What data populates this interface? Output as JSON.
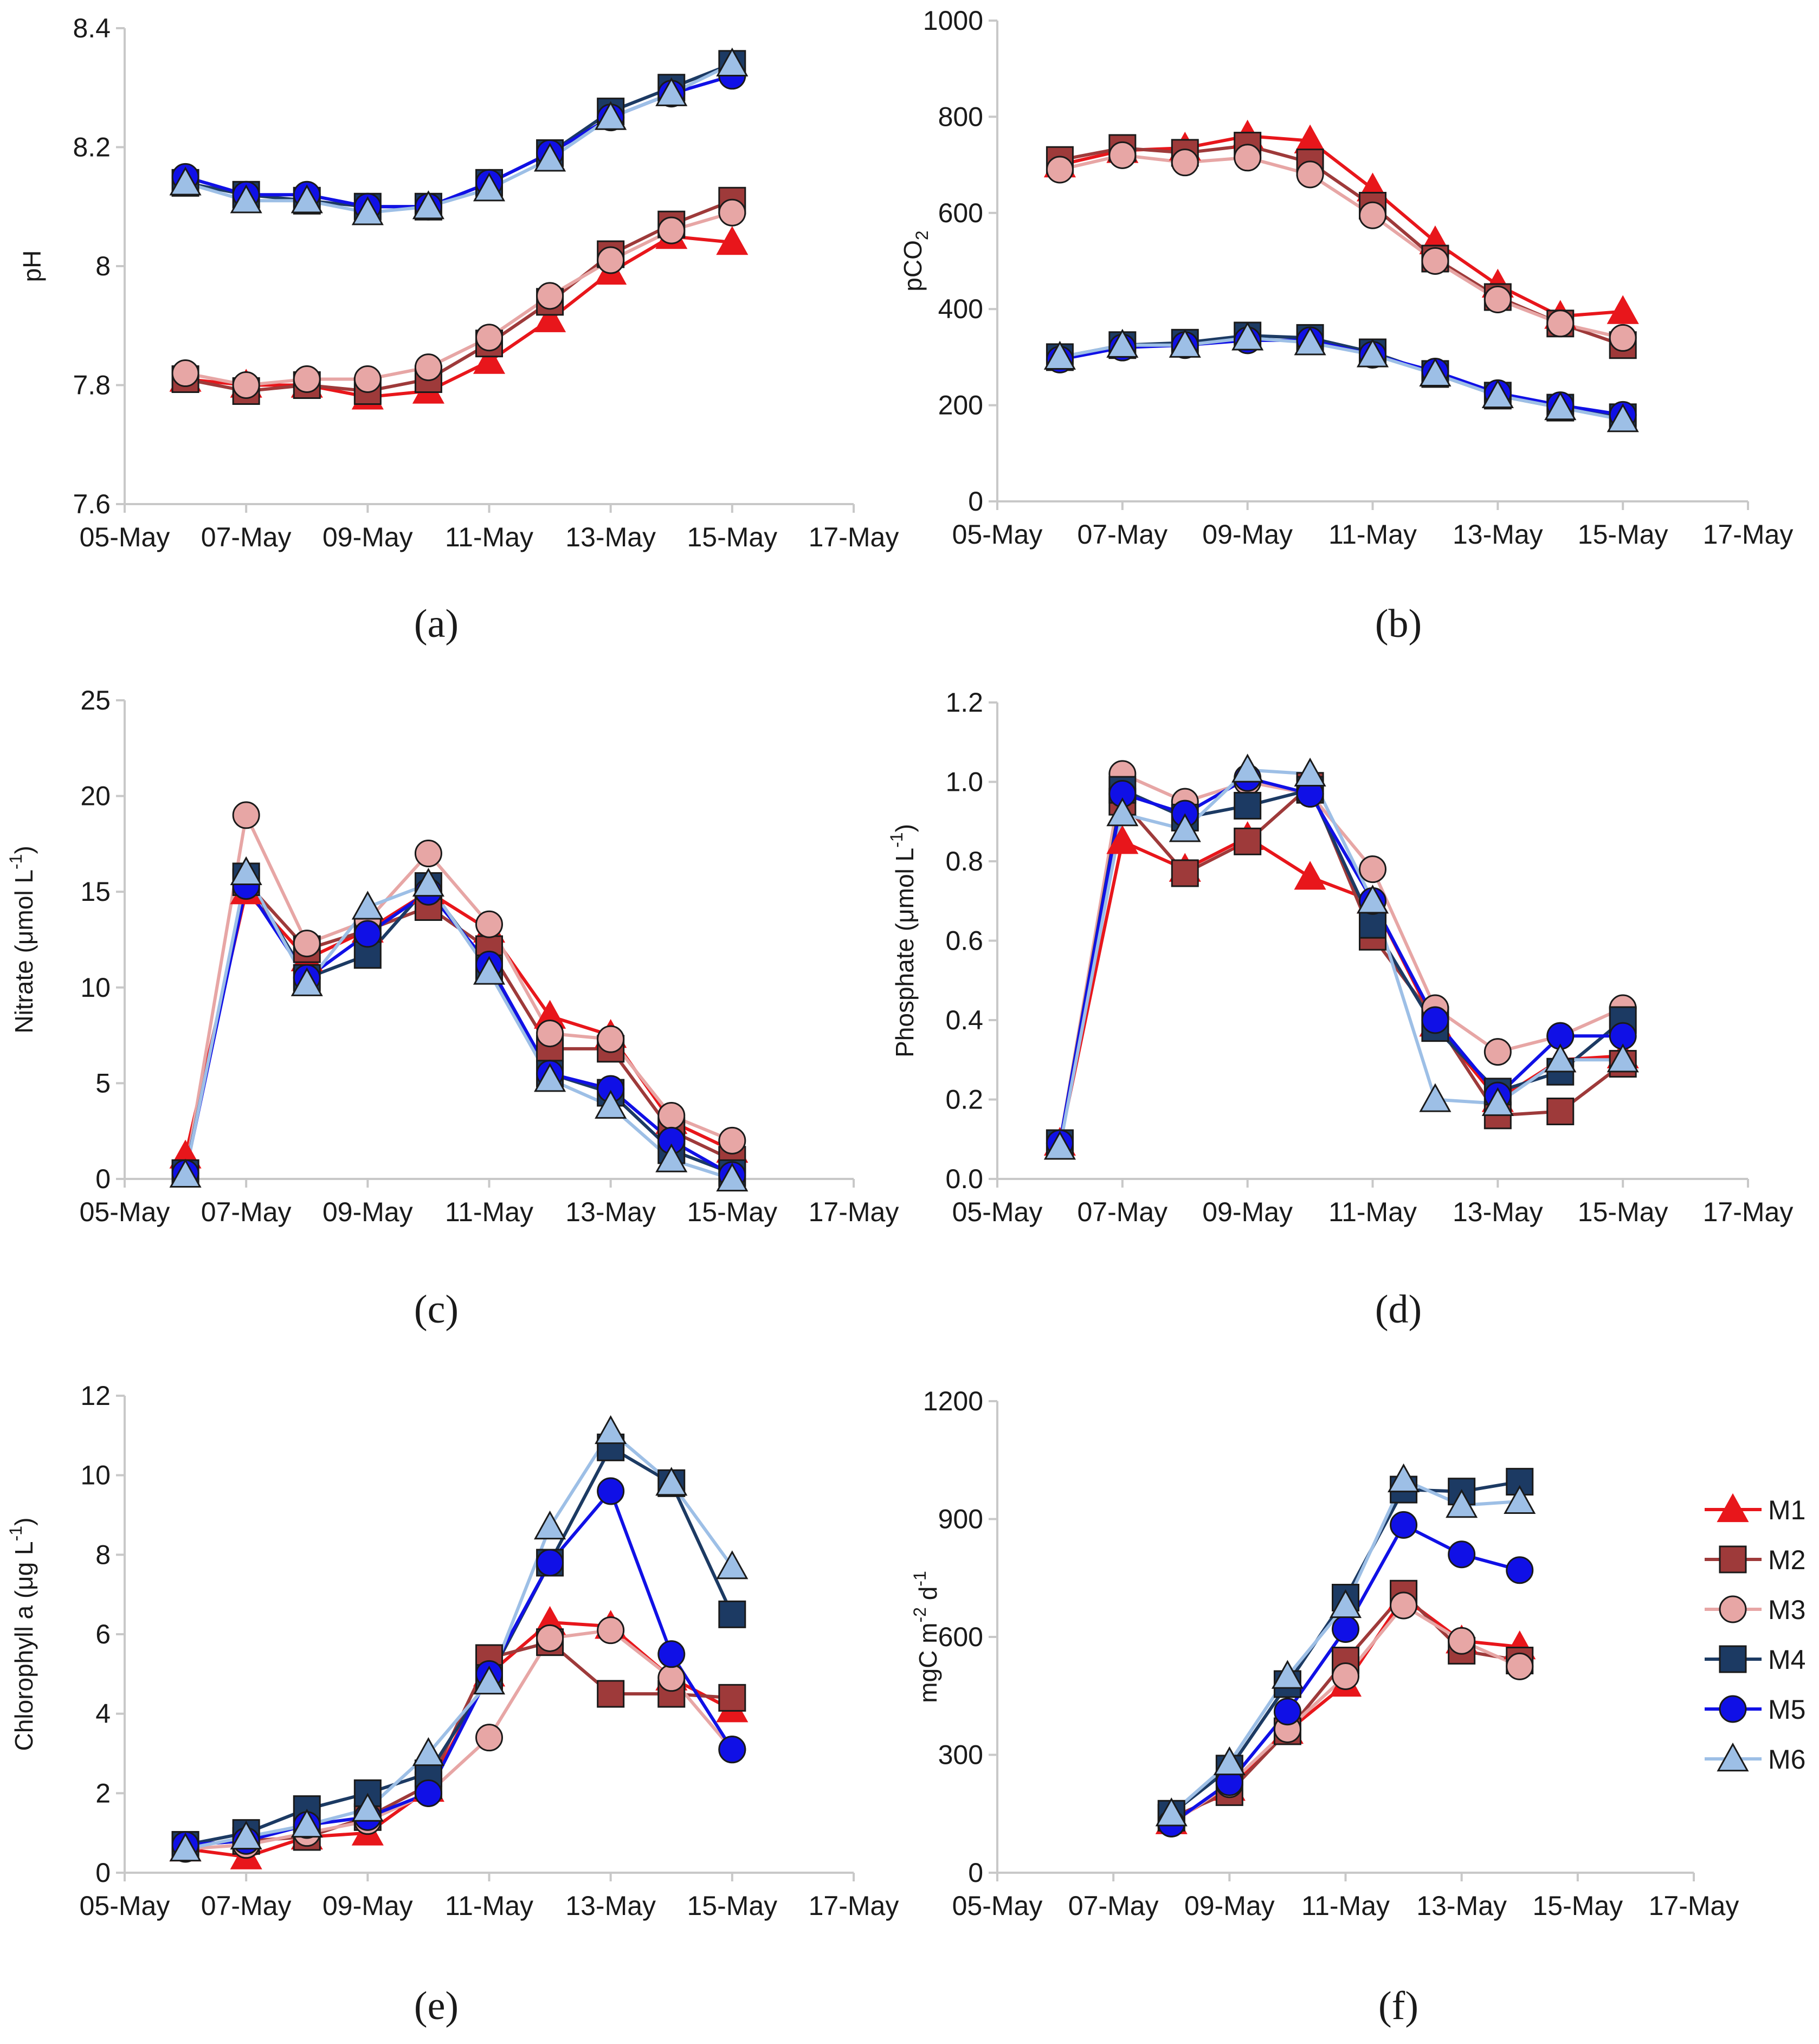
{
  "figure": {
    "panel_labels": [
      "(a)",
      "(b)",
      "(c)",
      "(d)",
      "(e)",
      "(f)"
    ],
    "colors": {
      "M1": "#e8161b",
      "M2": "#9e3a3a",
      "M3": "#e7a6a5",
      "M4": "#1c3a63",
      "M5": "#1010e6",
      "M6": "#9dbfe6"
    },
    "markers": {
      "M1": "triangle-icon",
      "M2": "square-icon",
      "M3": "circle-icon",
      "M4": "square-icon",
      "M5": "circle-icon",
      "M6": "triangle-icon"
    }
  },
  "legend": {
    "entries": [
      "M1",
      "M2",
      "M3",
      "M4",
      "M5",
      "M6"
    ],
    "placement": "right of panel (f)"
  },
  "chart_data": [
    {
      "panel": "(a)",
      "type": "line",
      "ylabel": "pH",
      "ylabel_sub": "",
      "ylabel_sup": "",
      "ylim": [
        7.6,
        8.4
      ],
      "yticks": [
        "7.6",
        "7.8",
        "8",
        "8.2",
        "8.4"
      ],
      "ytick_values": [
        7.6,
        7.8,
        8.0,
        8.2,
        8.4
      ],
      "xticks": [
        "05-May",
        "07-May",
        "09-May",
        "11-May",
        "13-May",
        "15-May",
        "17-May"
      ],
      "xlim": [
        5,
        17
      ],
      "x": [
        6,
        7,
        8,
        9,
        10,
        11,
        12,
        13,
        14,
        15
      ],
      "series": [
        {
          "name": "M1",
          "values": [
            7.81,
            7.8,
            7.8,
            7.78,
            7.79,
            7.84,
            7.91,
            7.99,
            8.05,
            8.04
          ]
        },
        {
          "name": "M2",
          "values": [
            7.81,
            7.79,
            7.8,
            7.79,
            7.81,
            7.87,
            7.94,
            8.02,
            8.07,
            8.11
          ]
        },
        {
          "name": "M3",
          "values": [
            7.82,
            7.8,
            7.81,
            7.81,
            7.83,
            7.88,
            7.95,
            8.01,
            8.06,
            8.09
          ]
        },
        {
          "name": "M4",
          "values": [
            8.14,
            8.12,
            8.11,
            8.1,
            8.1,
            8.14,
            8.19,
            8.26,
            8.3,
            8.34
          ]
        },
        {
          "name": "M5",
          "values": [
            8.15,
            8.12,
            8.12,
            8.1,
            8.1,
            8.14,
            8.19,
            8.25,
            8.29,
            8.32
          ]
        },
        {
          "name": "M6",
          "values": [
            8.14,
            8.11,
            8.11,
            8.09,
            8.1,
            8.13,
            8.18,
            8.25,
            8.29,
            8.34
          ]
        }
      ]
    },
    {
      "panel": "(b)",
      "type": "line",
      "ylabel": "pCO",
      "ylabel_sub": "2",
      "ylabel_sup": "",
      "ylim": [
        0,
        1000
      ],
      "yticks": [
        "0",
        "200",
        "400",
        "600",
        "800",
        "1000"
      ],
      "ytick_values": [
        0,
        200,
        400,
        600,
        800,
        1000
      ],
      "xticks": [
        "05-May",
        "07-May",
        "09-May",
        "11-May",
        "13-May",
        "15-May",
        "17-May"
      ],
      "xlim": [
        5,
        17
      ],
      "x": [
        6,
        7,
        8,
        9,
        10,
        11,
        12,
        13,
        14,
        15
      ],
      "series": [
        {
          "name": "M1",
          "values": [
            700,
            730,
            735,
            760,
            750,
            650,
            540,
            450,
            385,
            395
          ]
        },
        {
          "name": "M2",
          "values": [
            710,
            735,
            725,
            740,
            705,
            615,
            505,
            425,
            370,
            325
          ]
        },
        {
          "name": "M3",
          "values": [
            690,
            720,
            705,
            715,
            680,
            595,
            500,
            420,
            370,
            340
          ]
        },
        {
          "name": "M4",
          "values": [
            300,
            325,
            330,
            345,
            340,
            310,
            265,
            220,
            195,
            175
          ]
        },
        {
          "name": "M5",
          "values": [
            295,
            320,
            325,
            335,
            335,
            305,
            270,
            225,
            200,
            180
          ]
        },
        {
          "name": "M6",
          "values": [
            300,
            325,
            325,
            340,
            330,
            305,
            265,
            220,
            195,
            170
          ]
        }
      ]
    },
    {
      "panel": "(c)",
      "type": "line",
      "ylabel": "Nitrate (μmol L",
      "ylabel_sub": "",
      "ylabel_sup": "-1",
      "ylabel_tail": ")",
      "ylim": [
        0,
        25
      ],
      "yticks": [
        "0",
        "5",
        "10",
        "15",
        "20",
        "25"
      ],
      "ytick_values": [
        0,
        5,
        10,
        15,
        20,
        25
      ],
      "xticks": [
        "05-May",
        "07-May",
        "09-May",
        "11-May",
        "13-May",
        "15-May",
        "17-May"
      ],
      "xlim": [
        5,
        17
      ],
      "x": [
        6,
        7,
        8,
        9,
        10,
        11,
        12,
        13,
        14,
        15
      ],
      "series": [
        {
          "name": "M1",
          "values": [
            1.2,
            15.0,
            11.5,
            13.0,
            15.0,
            13.0,
            8.5,
            7.5,
            3.0,
            1.5
          ]
        },
        {
          "name": "M2",
          "values": [
            0.3,
            15.5,
            12.0,
            13.0,
            14.2,
            12.0,
            6.8,
            6.8,
            2.5,
            1.0
          ]
        },
        {
          "name": "M3",
          "values": [
            0.3,
            19.0,
            12.3,
            13.5,
            17.0,
            13.3,
            7.6,
            7.3,
            3.3,
            2.0
          ]
        },
        {
          "name": "M4",
          "values": [
            0.3,
            15.8,
            10.5,
            11.7,
            15.3,
            11.0,
            5.5,
            4.5,
            1.5,
            0.3
          ]
        },
        {
          "name": "M5",
          "values": [
            0.3,
            15.3,
            10.5,
            12.8,
            15.0,
            11.2,
            5.5,
            4.7,
            2.0,
            0.2
          ]
        },
        {
          "name": "M6",
          "values": [
            0.2,
            16.0,
            10.2,
            14.2,
            15.4,
            10.8,
            5.2,
            3.8,
            1.0,
            0.0
          ]
        }
      ]
    },
    {
      "panel": "(d)",
      "type": "line",
      "ylabel": "Phosphate (μmol L",
      "ylabel_sub": "",
      "ylabel_sup": "-1",
      "ylabel_tail": ")",
      "ylim": [
        0,
        1.2
      ],
      "yticks": [
        "0.0",
        "0.2",
        "0.4",
        "0.6",
        "0.8",
        "1.0",
        "1.2"
      ],
      "ytick_values": [
        0,
        0.2,
        0.4,
        0.6,
        0.8,
        1.0,
        1.2
      ],
      "xticks": [
        "05-May",
        "07-May",
        "09-May",
        "11-May",
        "13-May",
        "15-May",
        "17-May"
      ],
      "xlim": [
        5,
        17
      ],
      "x": [
        6,
        7,
        8,
        9,
        10,
        11,
        12,
        13,
        14,
        15
      ],
      "series": [
        {
          "name": "M1",
          "values": [
            0.09,
            0.85,
            0.78,
            0.86,
            0.76,
            0.7,
            0.39,
            0.2,
            0.3,
            0.31
          ]
        },
        {
          "name": "M2",
          "values": [
            0.09,
            0.95,
            0.77,
            0.85,
            0.99,
            0.61,
            0.4,
            0.16,
            0.17,
            0.29
          ]
        },
        {
          "name": "M3",
          "values": [
            0.09,
            1.02,
            0.95,
            1.0,
            0.97,
            0.78,
            0.43,
            0.32,
            0.36,
            0.43
          ]
        },
        {
          "name": "M4",
          "values": [
            0.09,
            0.98,
            0.91,
            0.94,
            0.98,
            0.64,
            0.38,
            0.22,
            0.27,
            0.4
          ]
        },
        {
          "name": "M5",
          "values": [
            0.09,
            0.97,
            0.92,
            1.01,
            0.97,
            0.7,
            0.4,
            0.21,
            0.36,
            0.36
          ]
        },
        {
          "name": "M6",
          "values": [
            0.08,
            0.92,
            0.88,
            1.03,
            1.02,
            0.7,
            0.2,
            0.19,
            0.3,
            0.3
          ]
        }
      ]
    },
    {
      "panel": "(e)",
      "type": "line",
      "ylabel": "Chlorophyll a (μg L",
      "ylabel_sub": "",
      "ylabel_sup": "-1",
      "ylabel_tail": ")",
      "ylim": [
        0,
        12
      ],
      "yticks": [
        "0",
        "2",
        "4",
        "6",
        "8",
        "10",
        "12"
      ],
      "ytick_values": [
        0,
        2,
        4,
        6,
        8,
        10,
        12
      ],
      "xticks": [
        "05-May",
        "07-May",
        "09-May",
        "11-May",
        "13-May",
        "15-May",
        "17-May"
      ],
      "xlim": [
        5,
        17
      ],
      "x": [
        6,
        7,
        8,
        9,
        10,
        11,
        12,
        13,
        14,
        15
      ],
      "series": [
        {
          "name": "M1",
          "values": [
            0.6,
            0.4,
            0.9,
            1.0,
            2.1,
            5.0,
            6.3,
            6.2,
            4.9,
            4.1
          ]
        },
        {
          "name": "M2",
          "values": [
            0.7,
            0.8,
            0.9,
            1.4,
            2.2,
            5.4,
            5.8,
            4.5,
            4.5,
            4.4
          ]
        },
        {
          "name": "M3",
          "values": [
            0.6,
            0.7,
            1.0,
            1.3,
            2.0,
            3.4,
            5.9,
            6.1,
            4.9,
            3.1
          ]
        },
        {
          "name": "M4",
          "values": [
            0.7,
            1.0,
            1.6,
            2.0,
            2.5,
            4.9,
            7.8,
            10.7,
            9.8,
            6.5
          ]
        },
        {
          "name": "M5",
          "values": [
            0.7,
            0.8,
            1.2,
            1.4,
            2.0,
            5.0,
            7.8,
            9.6,
            5.5,
            3.1
          ]
        },
        {
          "name": "M6",
          "values": [
            0.6,
            0.9,
            1.2,
            1.6,
            3.0,
            4.8,
            8.7,
            11.1,
            9.8,
            7.7
          ]
        }
      ]
    },
    {
      "panel": "(f)",
      "type": "line",
      "ylabel": "mgC m",
      "ylabel_sub": "",
      "ylabel_sup": "-2",
      "ylabel_tail": " d",
      "ylabel_sup2": "-1",
      "ylim": [
        0,
        1200
      ],
      "yticks": [
        "0",
        "300",
        "600",
        "900",
        "1200"
      ],
      "ytick_values": [
        0,
        300,
        600,
        900,
        1200
      ],
      "xticks": [
        "05-May",
        "07-May",
        "09-May",
        "11-May",
        "13-May",
        "15-May",
        "17-May"
      ],
      "xlim": [
        5,
        17
      ],
      "x": [
        8,
        9,
        10,
        11,
        12,
        13,
        14
      ],
      "series": [
        {
          "name": "M1",
          "values": [
            130,
            215,
            360,
            480,
            700,
            590,
            575
          ]
        },
        {
          "name": "M2",
          "values": [
            140,
            205,
            360,
            540,
            710,
            565,
            540
          ]
        },
        {
          "name": "M3",
          "values": [
            125,
            225,
            365,
            500,
            680,
            590,
            525
          ]
        },
        {
          "name": "M4",
          "values": [
            150,
            265,
            480,
            700,
            975,
            970,
            995
          ]
        },
        {
          "name": "M5",
          "values": [
            125,
            230,
            410,
            620,
            885,
            810,
            770
          ]
        },
        {
          "name": "M6",
          "values": [
            150,
            280,
            500,
            680,
            1000,
            935,
            945
          ]
        }
      ]
    }
  ]
}
